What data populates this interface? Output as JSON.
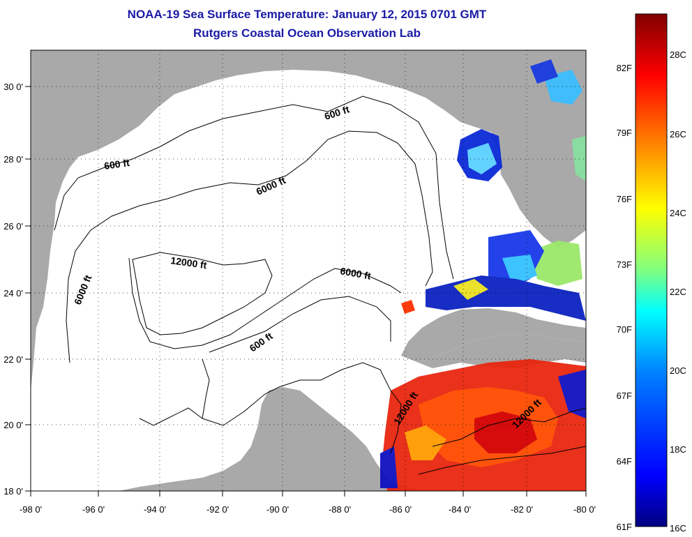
{
  "title": "NOAA-19 Sea Surface Temperature:  January 12, 2015 0701 GMT",
  "subtitle": "Rutgers Coastal Ocean Observation Lab",
  "map": {
    "lon_ticks": [
      "-98 0'",
      "-96 0'",
      "-94 0'",
      "-92 0'",
      "-90 0'",
      "-88 0'",
      "-86 0'",
      "-84 0'",
      "-82 0'",
      "-80 0'"
    ],
    "lat_ticks": [
      "18 0'",
      "20 0'",
      "22 0'",
      "24 0'",
      "26 0'",
      "28 0'",
      "30 0'"
    ],
    "contour_labels": [
      "600 ft",
      "6000 ft",
      "12000 ft",
      "6000 ft",
      "6000 ft",
      "600 ft",
      "600 ft",
      "12000 ft",
      "12000 ft"
    ],
    "land_color": "#a9a9a9",
    "ocean_color": "#ffffff"
  },
  "colorbar": {
    "fahrenheit_labels": [
      "82F",
      "79F",
      "76F",
      "73F",
      "70F",
      "67F",
      "64F",
      "61F"
    ],
    "celsius_labels": [
      "28C",
      "26C",
      "24C",
      "22C",
      "20C",
      "18C",
      "16C"
    ],
    "colors": [
      "#800000",
      "#ff0000",
      "#ff8000",
      "#ffff00",
      "#80ff80",
      "#00ffff",
      "#0080ff",
      "#0000ff",
      "#000080"
    ]
  }
}
